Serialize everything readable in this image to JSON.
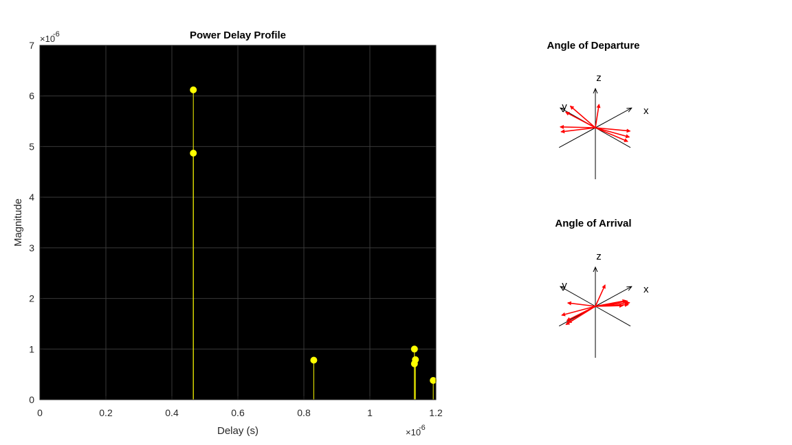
{
  "chart_data": [
    {
      "type": "stem",
      "title": "Power Delay Profile",
      "xlabel": "Delay (s)",
      "ylabel": "Magnitude",
      "x_exponent_label": "×10",
      "x_exponent": "-6",
      "y_exponent_label": "×10",
      "y_exponent": "-6",
      "xlim": [
        0,
        1.2
      ],
      "ylim": [
        0,
        7
      ],
      "xticks": [
        "0",
        "0.2",
        "0.4",
        "0.6",
        "0.8",
        "1",
        "1.2"
      ],
      "yticks": [
        "0",
        "1",
        "2",
        "3",
        "4",
        "5",
        "6",
        "7"
      ],
      "grid": true,
      "background": "#000000",
      "stem_color": "#ffff00",
      "points": [
        {
          "x": 0.465,
          "y": 6.12
        },
        {
          "x": 0.465,
          "y": 4.87
        },
        {
          "x": 0.83,
          "y": 0.78
        },
        {
          "x": 1.135,
          "y": 1.0
        },
        {
          "x": 1.138,
          "y": 0.79
        },
        {
          "x": 1.135,
          "y": 0.71
        },
        {
          "x": 1.192,
          "y": 0.38
        }
      ]
    },
    {
      "type": "3d-direction",
      "title": "Angle of Departure",
      "axis_labels": {
        "x": "x",
        "y": "y",
        "z": "z"
      },
      "arrow_color": "#ff0000",
      "directions": [
        {
          "az": 95,
          "el": 20
        },
        {
          "az": 105,
          "el": 12
        },
        {
          "az": 140,
          "el": 5
        },
        {
          "az": 150,
          "el": 2
        },
        {
          "az": 40,
          "el": 8
        },
        {
          "az": -60,
          "el": -18
        },
        {
          "az": -55,
          "el": -12
        },
        {
          "az": -40,
          "el": -10
        }
      ]
    },
    {
      "type": "3d-direction",
      "title": "Angle of Arrival",
      "axis_labels": {
        "x": "x",
        "y": "y",
        "z": "z"
      },
      "arrow_color": "#ff0000",
      "directions": [
        {
          "az": 175,
          "el": -8
        },
        {
          "az": 172,
          "el": -5
        },
        {
          "az": 165,
          "el": -18
        },
        {
          "az": 135,
          "el": -18
        },
        {
          "az": 100,
          "el": -15
        },
        {
          "az": -10,
          "el": -20
        },
        {
          "az": -20,
          "el": -6
        },
        {
          "az": -25,
          "el": -10
        },
        {
          "az": -15,
          "el": -8
        },
        {
          "az": 30,
          "el": 5
        },
        {
          "az": -30,
          "el": -3
        }
      ]
    }
  ]
}
